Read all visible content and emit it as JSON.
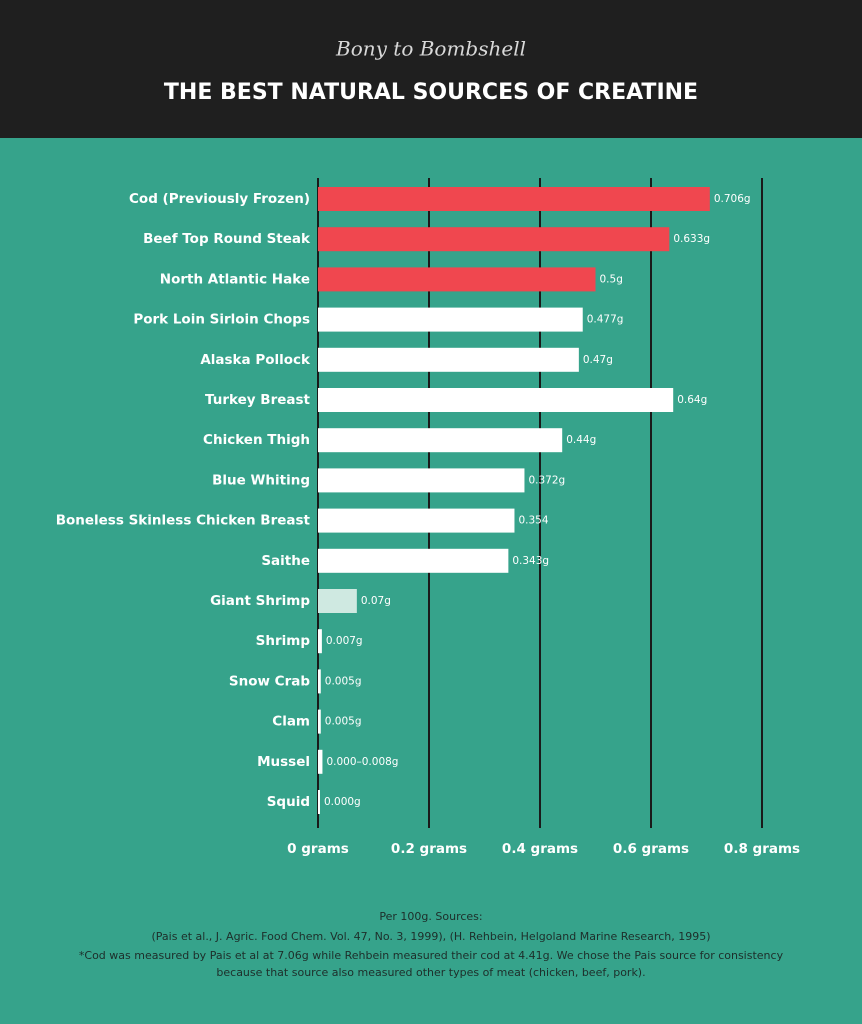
{
  "chart_data": {
    "type": "bar",
    "orientation": "horizontal",
    "logo": "Bony to Bombshell",
    "title": "THE BEST NATURAL SOURCES OF CREATINE",
    "categories": [
      "Cod (Previously Frozen)",
      "Beef Top Round Steak",
      "North Atlantic Hake",
      "Pork Loin Sirloin Chops",
      "Alaska Pollock",
      "Turkey Breast",
      "Chicken Thigh",
      "Blue Whiting",
      "Boneless Skinless Chicken Breast",
      "Saithe",
      "Giant Shrimp",
      "Shrimp",
      "Snow Crab",
      "Clam",
      "Mussel",
      "Squid"
    ],
    "values": [
      0.706,
      0.633,
      0.5,
      0.477,
      0.47,
      0.64,
      0.44,
      0.372,
      0.354,
      0.343,
      0.07,
      0.007,
      0.005,
      0.005,
      0.008,
      0
    ],
    "value_labels": [
      "0.706g",
      "0.633g",
      "0.5g",
      "0.477g",
      "0.47g",
      "0.64g",
      "0.44g",
      "0.372g",
      "0.354",
      "0.343g",
      "0.07g",
      "0.007g",
      "0.005g",
      "0.005g",
      "0.000–0.008g",
      "0.000g"
    ],
    "colors": [
      "#f0474f",
      "#f0474f",
      "#f0474f",
      "#ffffff",
      "#ffffff",
      "#ffffff",
      "#ffffff",
      "#ffffff",
      "#ffffff",
      "#ffffff",
      "#cfe9e1",
      "#ffffff",
      "#ffffff",
      "#ffffff",
      "#ffffff",
      "#ffffff"
    ],
    "xlim": [
      0,
      0.8
    ],
    "xticks": [
      {
        "value": 0,
        "label": "0 grams"
      },
      {
        "value": 0.2,
        "label": "0.2 grams"
      },
      {
        "value": 0.4,
        "label": "0.4 grams"
      },
      {
        "value": 0.6,
        "label": "0.6 grams"
      },
      {
        "value": 0.8,
        "label": "0.8 grams"
      }
    ],
    "grid": true,
    "notes": [
      "Per 100g. Sources:",
      "(Pais et al., J. Agric. Food Chem. Vol. 47, No. 3, 1999), (H. Rehbein, Helgoland Marine Research, 1995)",
      "*Cod was measured by Pais et al at 7.06g while Rehbein measured their cod at 4.41g. We chose the Pais source for consistency",
      "because that source also measured other types of meat (chicken, beef, pork)."
    ]
  }
}
